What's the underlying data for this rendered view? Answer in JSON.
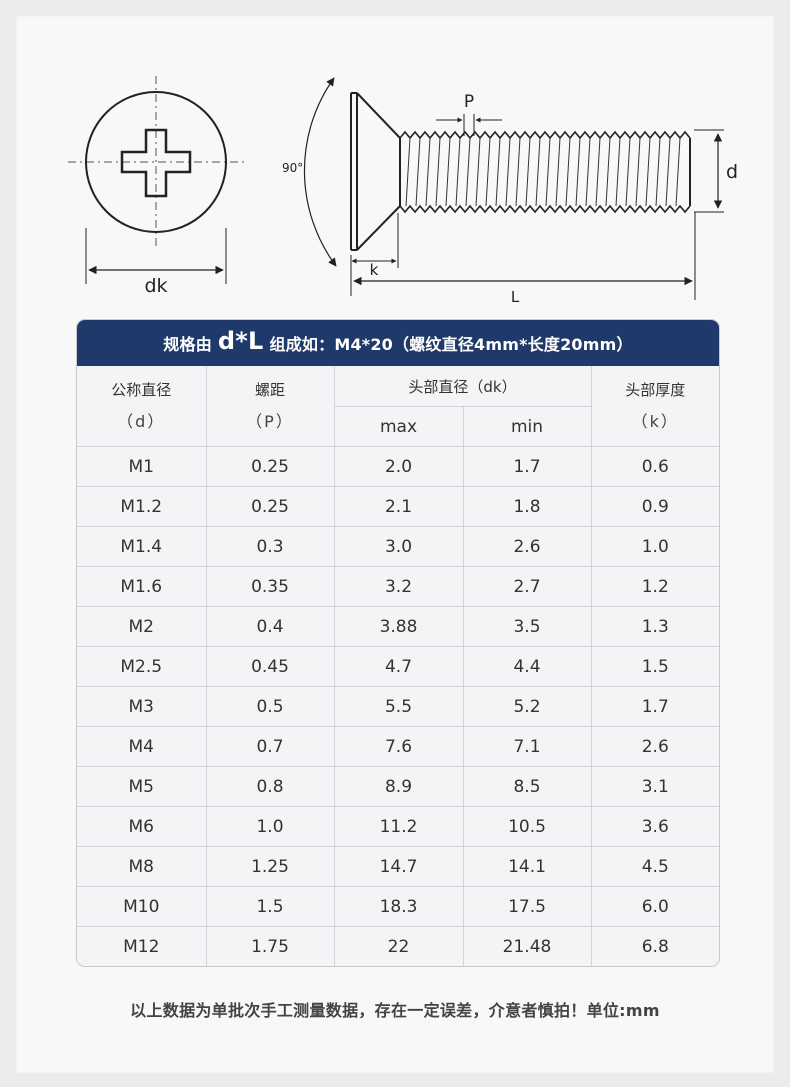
{
  "diagram": {
    "head_label": "dk",
    "angle_label": "90°",
    "pitch_label": "P",
    "diameter_label": "d",
    "height_label": "k",
    "length_label": "L"
  },
  "table": {
    "title_prefix": "规格由",
    "title_big": "d*L",
    "title_suffix": "组成如：M4*20（螺纹直径4mm*长度20mm）",
    "headers": {
      "nominal": "公称直径",
      "nominal_sym": "（d）",
      "pitch": "螺距",
      "pitch_sym": "（P）",
      "head_dia": "头部直径（dk）",
      "max": "max",
      "min": "min",
      "head_h": "头部厚度",
      "head_h_sym": "（k）"
    },
    "rows": [
      [
        "M1",
        "0.25",
        "2.0",
        "1.7",
        "0.6"
      ],
      [
        "M1.2",
        "0.25",
        "2.1",
        "1.8",
        "0.9"
      ],
      [
        "M1.4",
        "0.3",
        "3.0",
        "2.6",
        "1.0"
      ],
      [
        "M1.6",
        "0.35",
        "3.2",
        "2.7",
        "1.2"
      ],
      [
        "M2",
        "0.4",
        "3.88",
        "3.5",
        "1.3"
      ],
      [
        "M2.5",
        "0.45",
        "4.7",
        "4.4",
        "1.5"
      ],
      [
        "M3",
        "0.5",
        "5.5",
        "5.2",
        "1.7"
      ],
      [
        "M4",
        "0.7",
        "7.6",
        "7.1",
        "2.6"
      ],
      [
        "M5",
        "0.8",
        "8.9",
        "8.5",
        "3.1"
      ],
      [
        "M6",
        "1.0",
        "11.2",
        "10.5",
        "3.6"
      ],
      [
        "M8",
        "1.25",
        "14.7",
        "14.1",
        "4.5"
      ],
      [
        "M10",
        "1.5",
        "18.3",
        "17.5",
        "6.0"
      ],
      [
        "M12",
        "1.75",
        "22",
        "21.48",
        "6.8"
      ]
    ]
  },
  "footnote": "以上数据为单批次手工测量数据，存在一定误差，介意者慎拍！单位:mm"
}
